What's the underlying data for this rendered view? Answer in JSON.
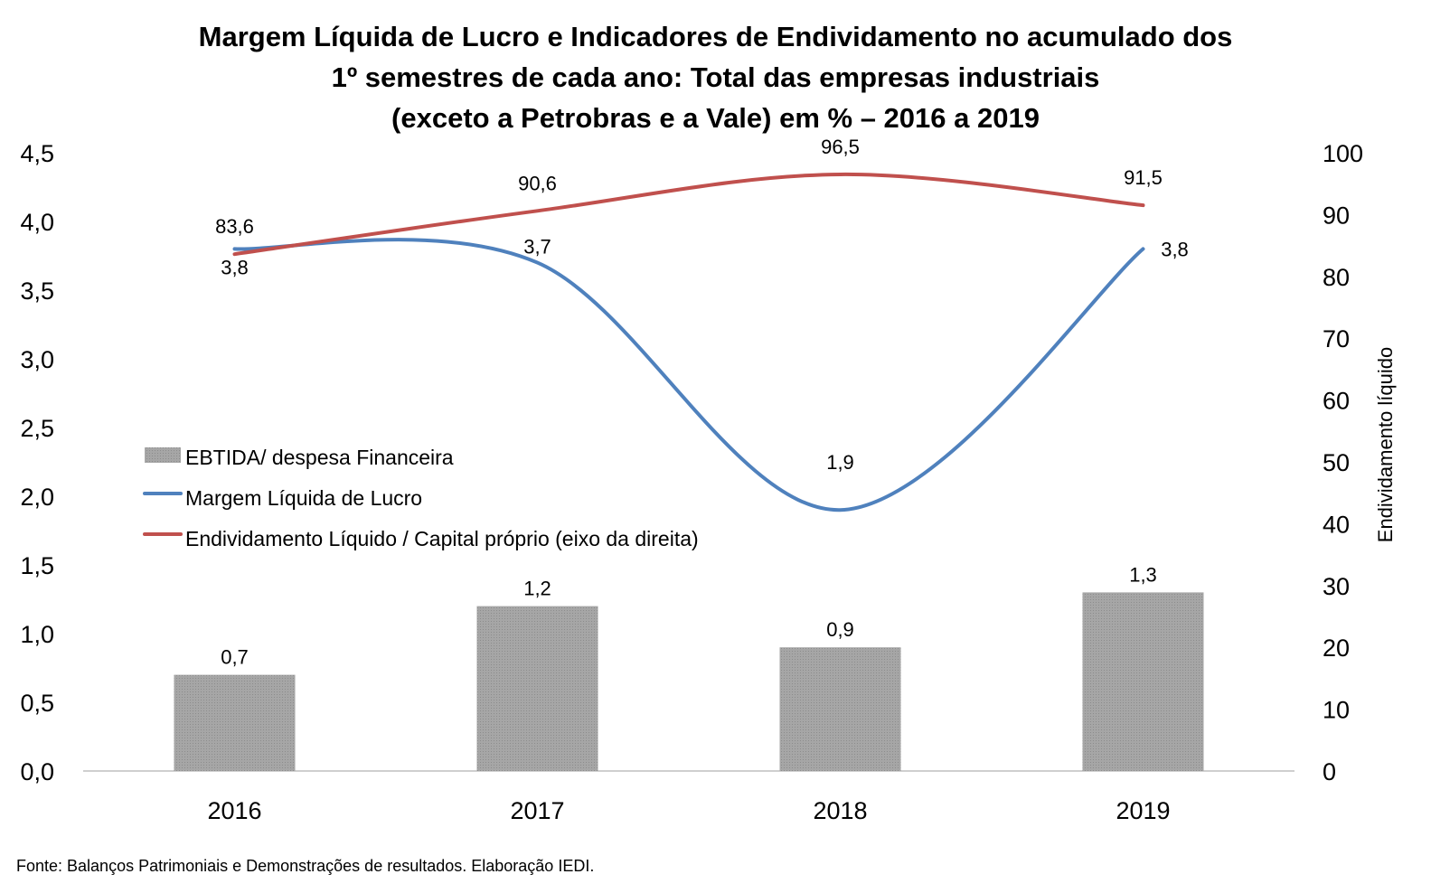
{
  "chart_data": {
    "type": "bar+line",
    "title": [
      "Margem Líquida de Lucro e Indicadores de Endividamento no acumulado dos",
      "1º semestres de cada ano: Total das empresas industriais",
      "(exceto a Petrobras e a Vale) em % – 2016 a 2019"
    ],
    "categories": [
      "2016",
      "2017",
      "2018",
      "2019"
    ],
    "y_left": {
      "range": [
        0,
        4.5
      ],
      "ticks": [
        "0,0",
        "0,5",
        "1,0",
        "1,5",
        "2,0",
        "2,5",
        "3,0",
        "3,5",
        "4,0",
        "4,5"
      ]
    },
    "y_right": {
      "label": "Endividamento líquido",
      "range": [
        0,
        100
      ],
      "ticks": [
        "0",
        "10",
        "20",
        "30",
        "40",
        "50",
        "60",
        "70",
        "80",
        "90",
        "100"
      ]
    },
    "series": [
      {
        "name": "EBTIDA/ despesa Financeira",
        "type": "bar",
        "axis": "left",
        "color": "#a6a6a6",
        "values": [
          0.7,
          1.2,
          0.9,
          1.3
        ],
        "labels": [
          "0,7",
          "1,2",
          "0,9",
          "1,3"
        ]
      },
      {
        "name": "Margem Líquida de Lucro",
        "type": "line",
        "axis": "left",
        "color": "#4f81bd",
        "values": [
          3.8,
          3.7,
          1.9,
          3.8
        ],
        "labels": [
          "3,8",
          "3,7",
          "1,9",
          "3,8"
        ]
      },
      {
        "name": "Endividamento Líquido / Capital próprio (eixo da direita)",
        "type": "line",
        "axis": "right",
        "color": "#c0504d",
        "values": [
          83.6,
          90.6,
          96.5,
          91.5
        ],
        "labels": [
          "83,6",
          "90,6",
          "96,5",
          "91,5"
        ]
      }
    ],
    "legend": "left-middle",
    "grid": false
  },
  "source": "Fonte: Balanços Patrimoniais e Demonstrações de resultados. Elaboração IEDI."
}
